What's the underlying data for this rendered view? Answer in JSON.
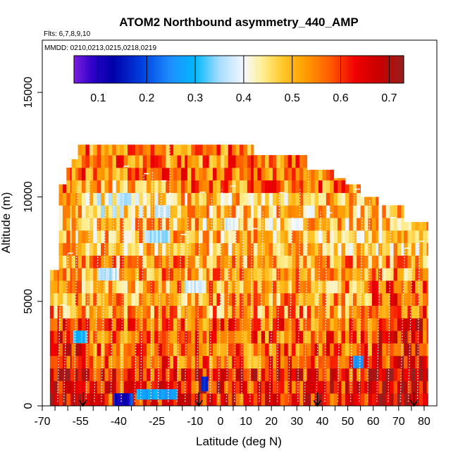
{
  "chart_data": {
    "type": "heatmap",
    "title": "ATOM2 Northbound asymmetry_440_AMP",
    "flights_label": "Flts: 6,7,8,9,10",
    "mmdd_label": "MMDD: 0210,0213,0215,0218,0219",
    "xlabel": "Latitude (deg N)",
    "ylabel": "Altitude (m)",
    "xlim": [
      -70,
      85
    ],
    "ylim": [
      0,
      17500
    ],
    "x_ticks": [
      -70,
      -55,
      -40,
      -25,
      -10,
      0,
      10,
      20,
      30,
      40,
      50,
      60,
      70,
      80
    ],
    "x_tick_labels": [
      "-70",
      "-55",
      "-40",
      "-25",
      "-10",
      "0",
      "10",
      "20",
      "30",
      "40",
      "50",
      "60",
      "70",
      "80"
    ],
    "x_minor_ticks": [
      -65,
      -60,
      -50,
      -45,
      -35,
      -30,
      -20,
      -15,
      -5,
      5,
      15,
      25,
      35,
      45,
      55,
      65,
      75
    ],
    "y_ticks": [
      0,
      5000,
      10000,
      15000
    ],
    "y_tick_labels": [
      "0",
      "5000",
      "10000",
      "15000"
    ],
    "colorbar": {
      "range": [
        0.05,
        0.73
      ],
      "ticks": [
        0.1,
        0.2,
        0.3,
        0.4,
        0.5,
        0.6,
        0.7
      ],
      "tick_labels": [
        "0.1",
        "0.2",
        "0.3",
        "0.4",
        "0.5",
        "0.6",
        "0.7"
      ],
      "stops": [
        {
          "v": 0.05,
          "color": "#7a1fe0"
        },
        {
          "v": 0.09,
          "color": "#2a00c8"
        },
        {
          "v": 0.13,
          "color": "#0000a8"
        },
        {
          "v": 0.19,
          "color": "#0040e0"
        },
        {
          "v": 0.25,
          "color": "#1e90ff"
        },
        {
          "v": 0.3,
          "color": "#00b8ff"
        },
        {
          "v": 0.35,
          "color": "#a8dcff"
        },
        {
          "v": 0.4,
          "color": "#f4f8ff"
        },
        {
          "v": 0.44,
          "color": "#ffee90"
        },
        {
          "v": 0.48,
          "color": "#ffc828"
        },
        {
          "v": 0.53,
          "color": "#ff9a00"
        },
        {
          "v": 0.58,
          "color": "#ff5a00"
        },
        {
          "v": 0.63,
          "color": "#f00000"
        },
        {
          "v": 0.68,
          "color": "#c80000"
        },
        {
          "v": 0.73,
          "color": "#962020"
        }
      ]
    },
    "flight_arrow_latitudes": [
      -54,
      -8.5,
      38,
      76
    ],
    "altitude_bin_m": 600,
    "lat_bin_deg": 1.5,
    "columns": [
      {
        "lat": [
          -67.0,
          -63.5
        ],
        "top": 6500
      },
      {
        "lat": [
          -63.5,
          -60.5
        ],
        "top": 10600
      },
      {
        "lat": [
          -60.5,
          -58.5
        ],
        "top": 11400
      },
      {
        "lat": [
          -58.5,
          -56.0
        ],
        "top": 11800
      },
      {
        "lat": [
          -56.0,
          -13.0
        ],
        "top": 12500
      },
      {
        "lat": [
          -13.0,
          -4.5
        ],
        "top": 12500
      },
      {
        "lat": [
          -4.5,
          13.0
        ],
        "top": 12500
      },
      {
        "lat": [
          13.0,
          34.0
        ],
        "top": 12000
      },
      {
        "lat": [
          34.0,
          44.5
        ],
        "top": 11300
      },
      {
        "lat": [
          44.5,
          49.0
        ],
        "top": 10900
      },
      {
        "lat": [
          49.0,
          55.0
        ],
        "top": 10600
      },
      {
        "lat": [
          55.0,
          62.0
        ],
        "top": 10000
      },
      {
        "lat": [
          62.0,
          72.0
        ],
        "top": 9600
      },
      {
        "lat": [
          72.0,
          81.5
        ],
        "top": 8800
      }
    ],
    "low_value_patches": [
      {
        "lat": [
          -42.0,
          -34.5
        ],
        "alt": [
          0,
          600
        ],
        "value": 0.2
      },
      {
        "lat": [
          -41.5,
          -36.0
        ],
        "alt": [
          0,
          600
        ],
        "value": 0.12
      },
      {
        "lat": [
          -33.0,
          -17.0
        ],
        "alt": [
          300,
          800
        ],
        "value": 0.28
      },
      {
        "lat": [
          -7.5,
          -5.0
        ],
        "alt": [
          700,
          1400
        ],
        "value": 0.15
      },
      {
        "lat": [
          -58.0,
          -52.5
        ],
        "alt": [
          3000,
          3600
        ],
        "value": 0.3
      },
      {
        "lat": [
          -48.0,
          -40.0
        ],
        "alt": [
          6000,
          6600
        ],
        "value": 0.37
      },
      {
        "lat": [
          -30.0,
          -20.0
        ],
        "alt": [
          7800,
          8400
        ],
        "value": 0.36
      },
      {
        "lat": [
          -26.0,
          -20.0
        ],
        "alt": [
          9000,
          9600
        ],
        "value": 0.38
      },
      {
        "lat": [
          52.0,
          56.0
        ],
        "alt": [
          1800,
          2400
        ],
        "value": 0.25
      },
      {
        "lat": [
          -14.0,
          -6.0
        ],
        "alt": [
          5400,
          6000
        ],
        "value": 0.38
      },
      {
        "lat": [
          2.0,
          7.0
        ],
        "alt": [
          8400,
          9000
        ],
        "value": 0.38
      }
    ]
  }
}
